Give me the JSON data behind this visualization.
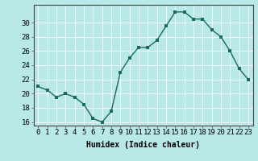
{
  "x": [
    0,
    1,
    2,
    3,
    4,
    5,
    6,
    7,
    8,
    9,
    10,
    11,
    12,
    13,
    14,
    15,
    16,
    17,
    18,
    19,
    20,
    21,
    22,
    23
  ],
  "y": [
    21,
    20.5,
    19.5,
    20,
    19.5,
    18.5,
    16.5,
    16,
    17.5,
    23,
    25,
    26.5,
    26.5,
    27.5,
    29.5,
    31.5,
    31.5,
    30.5,
    30.5,
    29,
    28,
    26,
    23.5,
    22
  ],
  "line_color": "#1a6b5a",
  "marker": "s",
  "marker_size": 2.5,
  "bg_color": "#b8e8e8",
  "grid_color": "#ffffff",
  "xlabel": "Humidex (Indice chaleur)",
  "xlim": [
    -0.5,
    23.5
  ],
  "ylim": [
    15.5,
    32.5
  ],
  "yticks": [
    16,
    18,
    20,
    22,
    24,
    26,
    28,
    30
  ],
  "xticks": [
    0,
    1,
    2,
    3,
    4,
    5,
    6,
    7,
    8,
    9,
    10,
    11,
    12,
    13,
    14,
    15,
    16,
    17,
    18,
    19,
    20,
    21,
    22,
    23
  ],
  "xlabel_fontsize": 7,
  "tick_fontsize": 6.5,
  "linewidth": 1.0
}
